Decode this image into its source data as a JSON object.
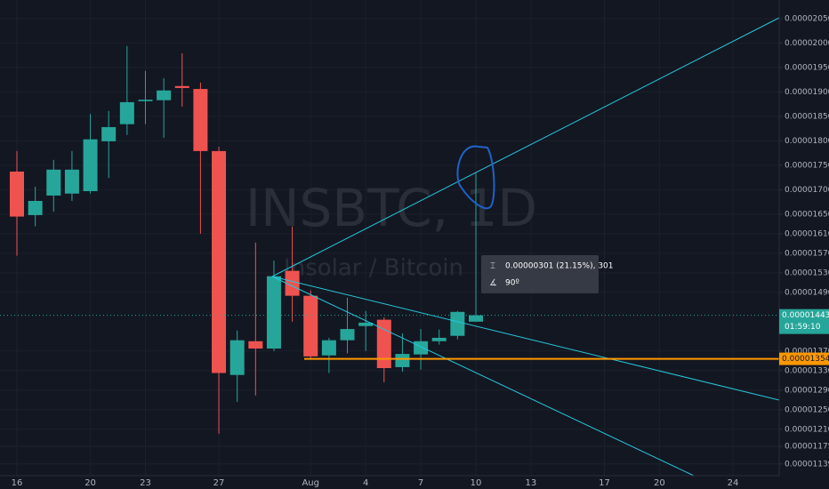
{
  "chart_data": {
    "type": "candlestick",
    "title": "INSBTC, 1D",
    "subtitle": "Insolar / Bitcoin",
    "categories": [
      "16",
      null,
      null,
      null,
      "20",
      null,
      null,
      "23",
      null,
      null,
      null,
      "27",
      null,
      null,
      null,
      null,
      "Aug",
      null,
      null,
      "4",
      null,
      null,
      "7",
      null,
      null,
      "10",
      null,
      null,
      "13",
      null,
      null,
      null,
      "17",
      null,
      null,
      "20",
      null,
      null,
      null,
      "24",
      null
    ],
    "open": [
      1.737e-05,
      1.648e-05,
      1.688e-05,
      1.692e-05,
      1.697e-05,
      1.799e-05,
      1.834e-05,
      1.881e-05,
      1.883e-05,
      1.912e-05,
      1.906e-05,
      1.779e-05,
      1.321e-05,
      1.39e-05,
      1.375e-05,
      1.534e-05,
      1.483e-05,
      1.361e-05,
      1.392e-05,
      1.421e-05,
      1.434e-05,
      1.337e-05,
      1.363e-05,
      1.39e-05,
      1.401e-05,
      1.43e-05,
      null,
      null,
      null,
      null,
      null,
      null,
      null,
      null,
      null,
      null,
      null,
      null,
      null,
      null,
      null
    ],
    "high": [
      1.779e-05,
      1.706e-05,
      1.761e-05,
      1.779e-05,
      1.855e-05,
      1.861e-05,
      1.994e-05,
      1.943e-05,
      1.928e-05,
      1.979e-05,
      1.919e-05,
      1.788e-05,
      1.412e-05,
      1.592e-05,
      1.555e-05,
      1.625e-05,
      1.494e-05,
      1.397e-05,
      1.479e-05,
      1.452e-05,
      1.439e-05,
      1.406e-05,
      1.415e-05,
      1.414e-05,
      1.452e-05,
      1.734e-05,
      null,
      null,
      null,
      null,
      null,
      null,
      null,
      null,
      null,
      null,
      null,
      null,
      null,
      null,
      null
    ],
    "low": [
      1.565e-05,
      1.625e-05,
      1.655e-05,
      1.677e-05,
      1.692e-05,
      1.724e-05,
      1.812e-05,
      1.834e-05,
      1.806e-05,
      1.87e-05,
      1.61e-05,
      1.201e-05,
      1.266e-05,
      1.279e-05,
      1.37e-05,
      1.43e-05,
      1.352e-05,
      1.325e-05,
      1.365e-05,
      1.37e-05,
      1.306e-05,
      1.328e-05,
      1.332e-05,
      1.383e-05,
      1.394e-05,
      1.43e-05,
      null,
      null,
      null,
      null,
      null,
      null,
      null,
      null,
      null,
      null,
      null,
      null,
      null,
      null,
      null
    ],
    "close": [
      1.645e-05,
      1.677e-05,
      1.741e-05,
      1.741e-05,
      1.803e-05,
      1.828e-05,
      1.879e-05,
      1.884e-05,
      1.903e-05,
      1.908e-05,
      1.779e-05,
      1.325e-05,
      1.392e-05,
      1.375e-05,
      1.523e-05,
      1.483e-05,
      1.359e-05,
      1.392e-05,
      1.415e-05,
      1.428e-05,
      1.335e-05,
      1.364e-05,
      1.39e-05,
      1.397e-05,
      1.45e-05,
      1.443e-05,
      null,
      null,
      null,
      null,
      null,
      null,
      null,
      null,
      null,
      null,
      null,
      null,
      null,
      null,
      null
    ],
    "up_color": "#26a69a",
    "down_color": "#ef5350",
    "ylim": [
      1.115e-05,
      2.088e-05
    ],
    "yticks": [
      {
        "value": 2.05e-05,
        "label": "0.00002050"
      },
      {
        "value": 2e-05,
        "label": "0.00002000"
      },
      {
        "value": 1.95e-05,
        "label": "0.00001950"
      },
      {
        "value": 1.9e-05,
        "label": "0.00001900"
      },
      {
        "value": 1.85e-05,
        "label": "0.00001850"
      },
      {
        "value": 1.8e-05,
        "label": "0.00001800"
      },
      {
        "value": 1.75e-05,
        "label": "0.00001750"
      },
      {
        "value": 1.7e-05,
        "label": "0.00001700"
      },
      {
        "value": 1.65e-05,
        "label": "0.00001650"
      },
      {
        "value": 1.61e-05,
        "label": "0.00001610"
      },
      {
        "value": 1.57e-05,
        "label": "0.00001570"
      },
      {
        "value": 1.53e-05,
        "label": "0.00001530"
      },
      {
        "value": 1.49e-05,
        "label": "0.00001490"
      },
      {
        "value": 1.37e-05,
        "label": "0.00001370"
      },
      {
        "value": 1.33e-05,
        "label": "0.00001330"
      },
      {
        "value": 1.29e-05,
        "label": "0.00001290"
      },
      {
        "value": 1.25e-05,
        "label": "0.00001250"
      },
      {
        "value": 1.21e-05,
        "label": "0.00001210"
      },
      {
        "value": 1.175e-05,
        "label": "0.00001175"
      },
      {
        "value": 1.139e-05,
        "label": "0.00001139"
      }
    ],
    "grid": true,
    "last_price": 1.443e-05,
    "last_price_color": "#26a69a",
    "countdown": "01:59:10",
    "horizontal_line": 1.354e-05,
    "horizontal_line_color": "#ff9800",
    "measure_label": "0.00000301 (21.15%), 301",
    "angle_label": "90º"
  }
}
